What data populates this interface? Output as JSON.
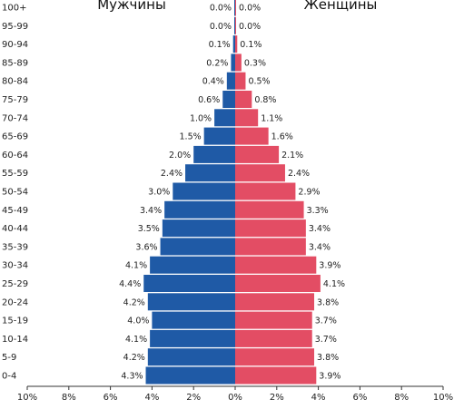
{
  "chart_data": {
    "type": "bar",
    "orientation": "horizontal-pyramid",
    "title": "",
    "xlabel": "",
    "ylabel": "",
    "xlim": [
      -10,
      10
    ],
    "x_ticks": [
      "10%",
      "8%",
      "6%",
      "4%",
      "2%",
      "0%",
      "2%",
      "4%",
      "6%",
      "8%",
      "10%"
    ],
    "categories": [
      "100+",
      "95-99",
      "90-94",
      "85-89",
      "80-84",
      "75-79",
      "70-74",
      "65-69",
      "60-64",
      "55-59",
      "50-54",
      "45-49",
      "40-44",
      "35-39",
      "30-34",
      "25-29",
      "20-24",
      "15-19",
      "10-14",
      "5-9",
      "0-4"
    ],
    "series": [
      {
        "name": "Мужчины",
        "color": "#1f5aa6",
        "values": [
          0.0,
          0.0,
          0.1,
          0.2,
          0.4,
          0.6,
          1.0,
          1.5,
          2.0,
          2.4,
          3.0,
          3.4,
          3.5,
          3.6,
          4.1,
          4.4,
          4.2,
          4.0,
          4.1,
          4.2,
          4.3
        ],
        "labels": [
          "0.0%",
          "0.0%",
          "0.1%",
          "0.2%",
          "0.4%",
          "0.6%",
          "1.0%",
          "1.5%",
          "2.0%",
          "2.4%",
          "3.0%",
          "3.4%",
          "3.5%",
          "3.6%",
          "4.1%",
          "4.4%",
          "4.2%",
          "4.0%",
          "4.1%",
          "4.2%",
          "4.3%"
        ]
      },
      {
        "name": "Женщины",
        "color": "#e34d64",
        "values": [
          0.0,
          0.0,
          0.1,
          0.3,
          0.5,
          0.8,
          1.1,
          1.6,
          2.1,
          2.4,
          2.9,
          3.3,
          3.4,
          3.4,
          3.9,
          4.1,
          3.8,
          3.7,
          3.7,
          3.8,
          3.9
        ],
        "labels": [
          "0.0%",
          "0.0%",
          "0.1%",
          "0.3%",
          "0.5%",
          "0.8%",
          "1.1%",
          "1.6%",
          "2.1%",
          "2.4%",
          "2.9%",
          "3.3%",
          "3.4%",
          "3.4%",
          "3.9%",
          "4.1%",
          "3.8%",
          "3.7%",
          "3.7%",
          "3.8%",
          "3.9%"
        ]
      }
    ],
    "legend": {
      "left": "Мужчины",
      "right": "Женщины"
    },
    "grid": false
  }
}
